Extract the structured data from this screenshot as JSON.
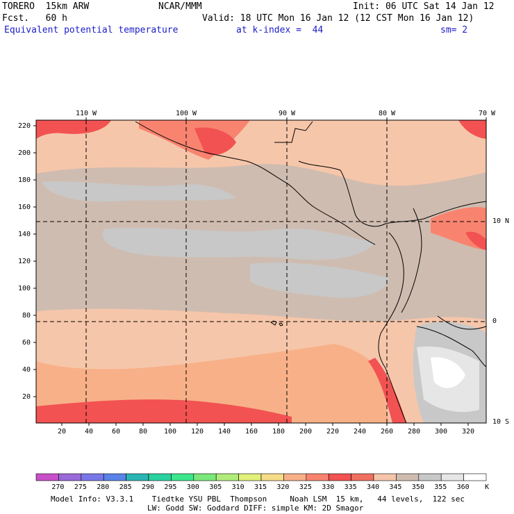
{
  "header": {
    "model": "TORERO  15km ARW",
    "org": "NCAR/MMM",
    "init": "Init: 06 UTC Sat 14 Jan 12",
    "fcst": "Fcst.   60 h",
    "valid": "Valid: 18 UTC Mon 16 Jan 12 (12 CST Mon 16 Jan 12)",
    "field": "Equivalent potential temperature",
    "level": "at k-index =  44",
    "smooth": "sm= 2"
  },
  "map": {
    "longitude_labels": [
      "110 W",
      "100 W",
      "90 W",
      "80 W",
      "70 W"
    ],
    "latitude_labels": [
      "10 N",
      "0",
      "10 S"
    ],
    "y_grid_labels": [
      "220",
      "200",
      "180",
      "160",
      "140",
      "120",
      "100",
      "80",
      "60",
      "40",
      "20"
    ],
    "x_grid_labels": [
      "20",
      "40",
      "60",
      "80",
      "100",
      "120",
      "140",
      "160",
      "180",
      "200",
      "220",
      "240",
      "260",
      "280",
      "300",
      "320"
    ]
  },
  "colorbar": {
    "labels": [
      "270",
      "275",
      "280",
      "285",
      "290",
      "295",
      "300",
      "305",
      "310",
      "315",
      "320",
      "325",
      "330",
      "335",
      "340",
      "345",
      "350",
      "355",
      "360"
    ],
    "unit": "K",
    "colors": [
      "#c850c8",
      "#9a6ad8",
      "#7878e8",
      "#5a82ea",
      "#2ab4b4",
      "#2ad2a0",
      "#3ce68c",
      "#7ae87a",
      "#b0ec7a",
      "#e0f07a",
      "#f7dc88",
      "#f8b088",
      "#f88470",
      "#f25252",
      "#f07060",
      "#f6c6aa",
      "#cfbcb0",
      "#c8c8c8",
      "#e6e6e6",
      "#ffffff"
    ]
  },
  "footer": {
    "line1": "Model Info: V3.3.1    Tiedtke YSU PBL  Thompson     Noah LSM  15 km,   44 levels,  122 sec",
    "line2": "LW: Godd SW: Goddard DIFF: simple KM: 2D Smagor"
  }
}
